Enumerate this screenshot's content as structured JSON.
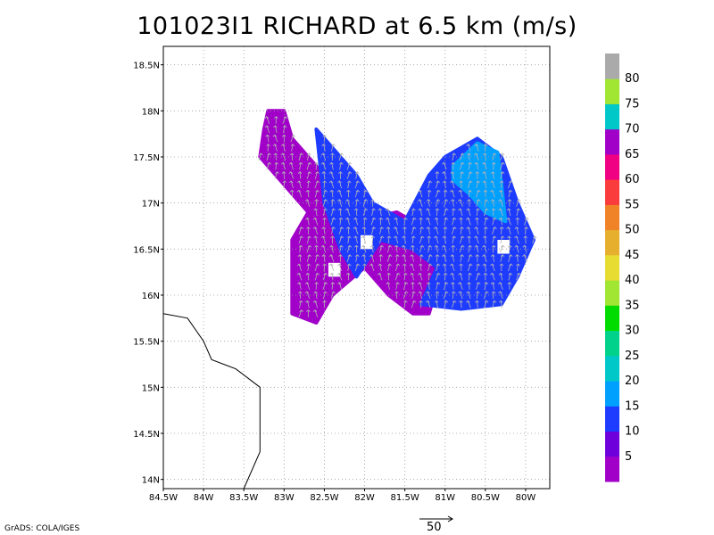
{
  "title": "101023I1 RICHARD at 6.5 km (m/s)",
  "credit": "GrADS: COLA/IGES",
  "reference_vector_label": "50",
  "chart_data": {
    "type": "heatmap",
    "title": "101023I1 RICHARD at 6.5 km (m/s)",
    "x_axis": {
      "range": [
        -84.5,
        -79.7
      ],
      "tick_values": [
        -84.5,
        -84,
        -83.5,
        -83,
        -82.5,
        -82,
        -81.5,
        -81,
        -80.5,
        -80
      ],
      "tick_labels": [
        "84.5W",
        "84W",
        "83.5W",
        "83W",
        "82.5W",
        "82W",
        "81.5W",
        "81W",
        "80.5W",
        "80W"
      ]
    },
    "y_axis": {
      "range": [
        13.9,
        18.7
      ],
      "tick_values": [
        14,
        14.5,
        15,
        15.5,
        16,
        16.5,
        17,
        17.5,
        18,
        18.5
      ],
      "tick_labels": [
        "14N",
        "14.5N",
        "15N",
        "15.5N",
        "16N",
        "16.5N",
        "17N",
        "17.5N",
        "18N",
        "18.5N"
      ]
    },
    "grid": true,
    "colorbar": {
      "placement": "right",
      "labels": [
        "5",
        "10",
        "15",
        "20",
        "25",
        "30",
        "35",
        "40",
        "45",
        "50",
        "55",
        "60",
        "65",
        "70",
        "75",
        "80"
      ],
      "colors": [
        "#a000c8",
        "#6e00dc",
        "#1e3cff",
        "#00a0ff",
        "#00c8c8",
        "#00d28c",
        "#00dc00",
        "#a0e632",
        "#e6dc32",
        "#e6af2d",
        "#f08228",
        "#fa3c3c",
        "#f00082",
        "#a000c8",
        "#00c8c8",
        "#a0e632",
        "#aaaaaa"
      ]
    },
    "wind_regions": [
      {
        "speed_class": "5-10",
        "color": "#a000c8",
        "polygon_lonlat": [
          [
            -83.2,
            18.0
          ],
          [
            -83.0,
            18.0
          ],
          [
            -82.9,
            17.7
          ],
          [
            -82.7,
            17.5
          ],
          [
            -82.5,
            17.3
          ],
          [
            -82.4,
            17.0
          ],
          [
            -82.1,
            16.8
          ],
          [
            -81.6,
            16.9
          ],
          [
            -81.2,
            16.7
          ],
          [
            -81.0,
            16.4
          ],
          [
            -81.1,
            16.1
          ],
          [
            -81.2,
            15.8
          ],
          [
            -81.4,
            15.8
          ],
          [
            -81.7,
            16.0
          ],
          [
            -82.0,
            16.3
          ],
          [
            -82.4,
            16.0
          ],
          [
            -82.6,
            15.7
          ],
          [
            -82.9,
            15.8
          ],
          [
            -82.9,
            16.3
          ],
          [
            -82.9,
            16.6
          ],
          [
            -82.7,
            16.9
          ],
          [
            -82.9,
            17.1
          ],
          [
            -83.1,
            17.3
          ],
          [
            -83.3,
            17.5
          ],
          [
            -83.25,
            17.8
          ]
        ]
      },
      {
        "speed_class": "10-15",
        "color": "#1e3cff",
        "polygon_lonlat": [
          [
            -82.6,
            17.8
          ],
          [
            -82.4,
            17.6
          ],
          [
            -82.1,
            17.3
          ],
          [
            -81.9,
            17.0
          ],
          [
            -81.5,
            16.8
          ],
          [
            -81.2,
            17.3
          ],
          [
            -81.0,
            17.5
          ],
          [
            -80.6,
            17.7
          ],
          [
            -80.3,
            17.5
          ],
          [
            -80.1,
            17.0
          ],
          [
            -79.9,
            16.6
          ],
          [
            -80.1,
            16.2
          ],
          [
            -80.3,
            15.9
          ],
          [
            -80.8,
            15.85
          ],
          [
            -81.3,
            15.9
          ],
          [
            -81.1,
            16.3
          ],
          [
            -81.4,
            16.5
          ],
          [
            -81.8,
            16.6
          ],
          [
            -82.1,
            16.2
          ],
          [
            -82.3,
            16.5
          ],
          [
            -82.5,
            17.0
          ]
        ]
      },
      {
        "speed_class": "15-20",
        "color": "#00a0ff",
        "polygon_lonlat": [
          [
            -80.9,
            17.4
          ],
          [
            -80.6,
            17.65
          ],
          [
            -80.35,
            17.55
          ],
          [
            -80.3,
            17.2
          ],
          [
            -80.25,
            16.8
          ],
          [
            -80.5,
            16.9
          ],
          [
            -80.7,
            17.1
          ],
          [
            -80.9,
            17.25
          ]
        ]
      }
    ],
    "gaps": [
      {
        "polygon_lonlat": [
          [
            -82.05,
            16.65
          ],
          [
            -81.9,
            16.65
          ],
          [
            -81.9,
            16.5
          ],
          [
            -82.05,
            16.5
          ]
        ]
      },
      {
        "polygon_lonlat": [
          [
            -80.35,
            16.6
          ],
          [
            -80.2,
            16.6
          ],
          [
            -80.2,
            16.45
          ],
          [
            -80.35,
            16.45
          ]
        ]
      },
      {
        "polygon_lonlat": [
          [
            -82.45,
            16.35
          ],
          [
            -82.3,
            16.35
          ],
          [
            -82.3,
            16.2
          ],
          [
            -82.45,
            16.2
          ]
        ]
      }
    ],
    "coastline_lonlat": [
      [
        -84.5,
        15.8
      ],
      [
        -84.2,
        15.75
      ],
      [
        -84.0,
        15.5
      ],
      [
        -83.9,
        15.3
      ],
      [
        -83.6,
        15.2
      ],
      [
        -83.3,
        15.0
      ],
      [
        -83.3,
        14.3
      ],
      [
        -83.5,
        13.9
      ]
    ],
    "wind_vectors": {
      "direction": "northward",
      "reference_speed": 50
    }
  }
}
